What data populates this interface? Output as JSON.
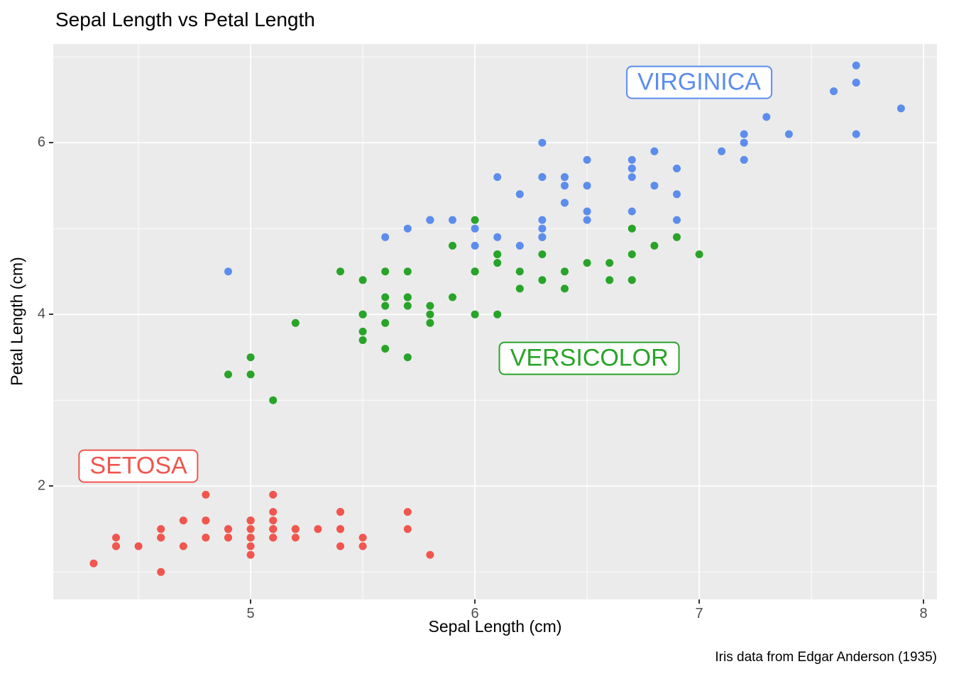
{
  "title": "Sepal Length vs Petal Length",
  "caption": "Iris data from Edgar Anderson (1935)",
  "chart_data": {
    "type": "scatter",
    "title": "Sepal Length vs Petal Length",
    "xlabel": "Sepal Length (cm)",
    "ylabel": "Petal Length (cm)",
    "caption": "Iris data from Edgar Anderson (1935)",
    "xlim": [
      4.12,
      8.06
    ],
    "ylim": [
      0.68,
      7.15
    ],
    "x_major_ticks": [
      5,
      6,
      7,
      8
    ],
    "y_major_ticks": [
      2,
      4,
      6
    ],
    "x_minor_ticks": [
      4.5,
      5.5,
      6.5,
      7.5
    ],
    "y_minor_ticks": [
      1,
      3,
      5,
      7
    ],
    "grid": true,
    "legend": "none",
    "panel_background": "#EBEBEB",
    "gridline_color": "#FFFFFF",
    "tick_label_color": "#4D4D4D",
    "series": [
      {
        "name": "setosa",
        "color": "#F0564E",
        "label": {
          "text": "SETOSA",
          "x": 4.5,
          "y": 2.23
        },
        "points": [
          [
            5.1,
            1.4
          ],
          [
            4.9,
            1.4
          ],
          [
            4.7,
            1.3
          ],
          [
            4.6,
            1.5
          ],
          [
            5.0,
            1.4
          ],
          [
            5.4,
            1.7
          ],
          [
            4.6,
            1.4
          ],
          [
            5.0,
            1.5
          ],
          [
            4.4,
            1.4
          ],
          [
            4.9,
            1.5
          ],
          [
            5.4,
            1.5
          ],
          [
            4.8,
            1.6
          ],
          [
            4.8,
            1.4
          ],
          [
            4.3,
            1.1
          ],
          [
            5.8,
            1.2
          ],
          [
            5.7,
            1.5
          ],
          [
            5.4,
            1.3
          ],
          [
            5.1,
            1.4
          ],
          [
            5.7,
            1.7
          ],
          [
            5.1,
            1.5
          ],
          [
            5.4,
            1.7
          ],
          [
            5.1,
            1.5
          ],
          [
            4.6,
            1.0
          ],
          [
            5.1,
            1.7
          ],
          [
            4.8,
            1.9
          ],
          [
            5.0,
            1.6
          ],
          [
            5.0,
            1.6
          ],
          [
            5.2,
            1.5
          ],
          [
            5.2,
            1.4
          ],
          [
            4.7,
            1.6
          ],
          [
            4.8,
            1.6
          ],
          [
            5.4,
            1.5
          ],
          [
            5.2,
            1.5
          ],
          [
            5.5,
            1.4
          ],
          [
            4.9,
            1.5
          ],
          [
            5.0,
            1.2
          ],
          [
            5.5,
            1.3
          ],
          [
            4.9,
            1.4
          ],
          [
            4.4,
            1.3
          ],
          [
            5.1,
            1.5
          ],
          [
            5.0,
            1.3
          ],
          [
            4.5,
            1.3
          ],
          [
            4.4,
            1.3
          ],
          [
            5.0,
            1.6
          ],
          [
            5.1,
            1.9
          ],
          [
            4.8,
            1.4
          ],
          [
            5.1,
            1.6
          ],
          [
            4.6,
            1.4
          ],
          [
            5.3,
            1.5
          ],
          [
            5.0,
            1.4
          ]
        ]
      },
      {
        "name": "versicolor",
        "color": "#28A428",
        "label": {
          "text": "VERSICOLOR",
          "x": 6.51,
          "y": 3.49
        },
        "points": [
          [
            7.0,
            4.7
          ],
          [
            6.4,
            4.5
          ],
          [
            6.9,
            4.9
          ],
          [
            5.5,
            4.0
          ],
          [
            6.5,
            4.6
          ],
          [
            5.7,
            4.5
          ],
          [
            6.3,
            4.7
          ],
          [
            4.9,
            3.3
          ],
          [
            6.6,
            4.6
          ],
          [
            5.2,
            3.9
          ],
          [
            5.0,
            3.5
          ],
          [
            5.9,
            4.2
          ],
          [
            6.0,
            4.0
          ],
          [
            6.1,
            4.7
          ],
          [
            5.6,
            3.6
          ],
          [
            6.7,
            4.4
          ],
          [
            5.6,
            4.5
          ],
          [
            5.8,
            4.1
          ],
          [
            6.2,
            4.5
          ],
          [
            5.6,
            3.9
          ],
          [
            5.9,
            4.8
          ],
          [
            6.1,
            4.0
          ],
          [
            6.3,
            4.9
          ],
          [
            6.1,
            4.7
          ],
          [
            6.4,
            4.3
          ],
          [
            6.6,
            4.4
          ],
          [
            6.8,
            4.8
          ],
          [
            6.7,
            5.0
          ],
          [
            6.0,
            4.5
          ],
          [
            5.7,
            3.5
          ],
          [
            5.5,
            3.8
          ],
          [
            5.5,
            3.7
          ],
          [
            5.8,
            3.9
          ],
          [
            6.0,
            5.1
          ],
          [
            5.4,
            4.5
          ],
          [
            6.0,
            4.5
          ],
          [
            6.7,
            4.7
          ],
          [
            6.3,
            4.4
          ],
          [
            5.6,
            4.1
          ],
          [
            5.5,
            4.0
          ],
          [
            5.5,
            4.4
          ],
          [
            6.1,
            4.6
          ],
          [
            5.8,
            4.0
          ],
          [
            5.0,
            3.3
          ],
          [
            5.6,
            4.2
          ],
          [
            5.7,
            4.2
          ],
          [
            5.7,
            4.2
          ],
          [
            6.2,
            4.3
          ],
          [
            5.1,
            3.0
          ],
          [
            5.7,
            4.1
          ]
        ]
      },
      {
        "name": "virginica",
        "color": "#5C8DEC",
        "label": {
          "text": "VIRGINICA",
          "x": 7.0,
          "y": 6.7
        },
        "points": [
          [
            6.3,
            6.0
          ],
          [
            5.8,
            5.1
          ],
          [
            7.1,
            5.9
          ],
          [
            6.3,
            5.6
          ],
          [
            6.5,
            5.8
          ],
          [
            7.6,
            6.6
          ],
          [
            4.9,
            4.5
          ],
          [
            7.3,
            6.3
          ],
          [
            6.7,
            5.8
          ],
          [
            7.2,
            6.1
          ],
          [
            6.5,
            5.1
          ],
          [
            6.4,
            5.3
          ],
          [
            6.8,
            5.5
          ],
          [
            5.7,
            5.0
          ],
          [
            5.8,
            5.1
          ],
          [
            6.4,
            5.3
          ],
          [
            6.5,
            5.5
          ],
          [
            7.7,
            6.7
          ],
          [
            7.7,
            6.9
          ],
          [
            6.0,
            5.0
          ],
          [
            6.9,
            5.7
          ],
          [
            5.6,
            4.9
          ],
          [
            7.7,
            6.7
          ],
          [
            6.3,
            4.9
          ],
          [
            6.7,
            5.7
          ],
          [
            7.2,
            6.0
          ],
          [
            6.2,
            4.8
          ],
          [
            6.1,
            4.9
          ],
          [
            6.4,
            5.6
          ],
          [
            7.2,
            5.8
          ],
          [
            7.4,
            6.1
          ],
          [
            7.9,
            6.4
          ],
          [
            6.4,
            5.6
          ],
          [
            6.3,
            5.1
          ],
          [
            6.1,
            5.6
          ],
          [
            7.7,
            6.1
          ],
          [
            6.3,
            5.6
          ],
          [
            6.4,
            5.5
          ],
          [
            6.0,
            4.8
          ],
          [
            6.9,
            5.4
          ],
          [
            6.7,
            5.6
          ],
          [
            6.9,
            5.1
          ],
          [
            5.8,
            5.1
          ],
          [
            6.8,
            5.9
          ],
          [
            6.7,
            5.7
          ],
          [
            6.7,
            5.2
          ],
          [
            6.3,
            5.0
          ],
          [
            6.5,
            5.2
          ],
          [
            6.2,
            5.4
          ],
          [
            5.9,
            5.1
          ]
        ]
      }
    ]
  }
}
